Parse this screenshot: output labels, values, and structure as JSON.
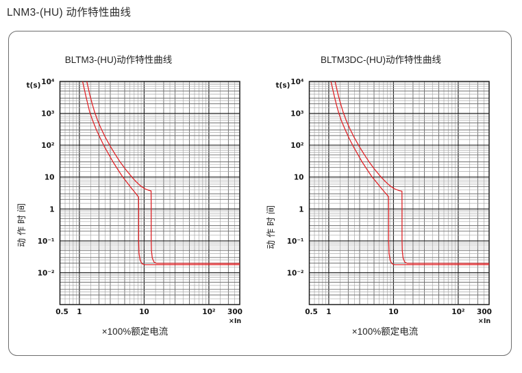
{
  "page": {
    "title": "LNM3-(HU) 动作特性曲线"
  },
  "colors": {
    "curve": "#e02428",
    "grid_major": "#1c1c1c",
    "grid_mid": "#6e6e6e",
    "grid_minor": "#a8a8a8",
    "plot_border": "#1c1c1c",
    "panel_border": "#6b6b6b",
    "text": "#222222"
  },
  "chart_data": [
    {
      "type": "line",
      "title": "BLTM3-(HU)动作特性曲线",
      "xlabel": "×100%额定电流",
      "ylabel": "动作时间",
      "y_axis_unit": "t(s)",
      "x_axis_unit": "×In",
      "xscale": "log",
      "yscale": "log",
      "xlim": [
        0.5,
        300
      ],
      "ylim": [
        0.001,
        10000
      ],
      "grid": "log-decades-with-minors",
      "legend": "none",
      "x_ticks": [
        {
          "value": 0.5,
          "label": "0.5"
        },
        {
          "value": 1,
          "label": "1"
        },
        {
          "value": 10,
          "label": "10"
        },
        {
          "value": 100,
          "label": "10²"
        },
        {
          "value": 300,
          "label": "300"
        }
      ],
      "y_ticks": [
        {
          "value": 10000,
          "label": "10⁴"
        },
        {
          "value": 1000,
          "label": "10³"
        },
        {
          "value": 100,
          "label": "10²"
        },
        {
          "value": 10,
          "label": "10"
        },
        {
          "value": 1,
          "label": "1"
        },
        {
          "value": 0.1,
          "label": "10⁻¹"
        },
        {
          "value": 0.01,
          "label": "10⁻²"
        }
      ],
      "series": [
        {
          "name": "min-trip-time",
          "points": [
            [
              1.12,
              10000
            ],
            [
              1.18,
              6200
            ],
            [
              1.26,
              3400
            ],
            [
              1.35,
              1900
            ],
            [
              1.45,
              1050
            ],
            [
              1.62,
              560
            ],
            [
              1.82,
              310
            ],
            [
              2.1,
              165
            ],
            [
              2.4,
              95
            ],
            [
              2.8,
              54
            ],
            [
              3.3,
              30
            ],
            [
              3.9,
              17.5
            ],
            [
              4.6,
              10.5
            ],
            [
              5.4,
              6.9
            ],
            [
              6.3,
              4.6
            ],
            [
              7.2,
              3.3
            ],
            [
              7.9,
              2.6
            ],
            [
              8.2,
              2.35
            ],
            [
              8.23,
              0.9
            ],
            [
              8.23,
              0.09
            ],
            [
              8.33,
              0.04
            ],
            [
              8.7,
              0.024
            ],
            [
              9.3,
              0.019
            ],
            [
              10.2,
              0.0178
            ],
            [
              300,
              0.0178
            ]
          ]
        },
        {
          "name": "max-trip-time",
          "points": [
            [
              1.3,
              10000
            ],
            [
              1.37,
              6200
            ],
            [
              1.46,
              3500
            ],
            [
              1.58,
              1950
            ],
            [
              1.72,
              1080
            ],
            [
              1.92,
              580
            ],
            [
              2.18,
              320
            ],
            [
              2.52,
              175
            ],
            [
              2.95,
              98
            ],
            [
              3.5,
              55
            ],
            [
              4.2,
              31
            ],
            [
              5.0,
              19
            ],
            [
              6.0,
              12
            ],
            [
              7.2,
              7.8
            ],
            [
              8.6,
              5.5
            ],
            [
              10.1,
              4.35
            ],
            [
              11.9,
              3.8
            ],
            [
              12.8,
              3.68
            ],
            [
              12.84,
              1.2
            ],
            [
              12.84,
              0.11
            ],
            [
              12.95,
              0.05
            ],
            [
              13.35,
              0.029
            ],
            [
              14.2,
              0.0215
            ],
            [
              15.5,
              0.0197
            ],
            [
              300,
              0.0195
            ]
          ]
        }
      ]
    },
    {
      "type": "line",
      "title": "BLTM3DC-(HU)动作特性曲线",
      "xlabel": "×100%额定电流",
      "ylabel": "动作时间",
      "y_axis_unit": "t(s)",
      "x_axis_unit": "×In",
      "xscale": "log",
      "yscale": "log",
      "xlim": [
        0.5,
        300
      ],
      "ylim": [
        0.001,
        10000
      ],
      "grid": "log-decades-with-minors",
      "legend": "none",
      "x_ticks": [
        {
          "value": 0.5,
          "label": "0.5"
        },
        {
          "value": 1,
          "label": "1"
        },
        {
          "value": 10,
          "label": "10"
        },
        {
          "value": 100,
          "label": "10²"
        },
        {
          "value": 300,
          "label": "300"
        }
      ],
      "y_ticks": [
        {
          "value": 10000,
          "label": "10⁴"
        },
        {
          "value": 1000,
          "label": "10³"
        },
        {
          "value": 100,
          "label": "10²"
        },
        {
          "value": 10,
          "label": "10"
        },
        {
          "value": 1,
          "label": "1"
        },
        {
          "value": 0.1,
          "label": "10⁻¹"
        },
        {
          "value": 0.01,
          "label": "10⁻²"
        }
      ],
      "series": [
        {
          "name": "min-trip-time",
          "points": [
            [
              1.08,
              10000
            ],
            [
              1.14,
              6200
            ],
            [
              1.22,
              3400
            ],
            [
              1.31,
              1900
            ],
            [
              1.42,
              1050
            ],
            [
              1.58,
              560
            ],
            [
              1.79,
              310
            ],
            [
              2.06,
              165
            ],
            [
              2.37,
              95
            ],
            [
              2.77,
              54
            ],
            [
              3.27,
              30
            ],
            [
              3.88,
              17.5
            ],
            [
              4.6,
              10.5
            ],
            [
              5.45,
              6.9
            ],
            [
              6.4,
              4.6
            ],
            [
              7.35,
              3.3
            ],
            [
              8.1,
              2.65
            ],
            [
              8.4,
              2.4
            ],
            [
              8.43,
              0.9
            ],
            [
              8.43,
              0.09
            ],
            [
              8.53,
              0.04
            ],
            [
              8.9,
              0.024
            ],
            [
              9.5,
              0.019
            ],
            [
              10.4,
              0.0178
            ],
            [
              300,
              0.0178
            ]
          ]
        },
        {
          "name": "max-trip-time",
          "points": [
            [
              1.25,
              10000
            ],
            [
              1.32,
              6200
            ],
            [
              1.41,
              3500
            ],
            [
              1.53,
              1950
            ],
            [
              1.67,
              1080
            ],
            [
              1.87,
              580
            ],
            [
              2.13,
              320
            ],
            [
              2.47,
              175
            ],
            [
              2.9,
              98
            ],
            [
              3.45,
              55
            ],
            [
              4.15,
              31
            ],
            [
              4.95,
              19
            ],
            [
              5.95,
              12
            ],
            [
              7.2,
              7.8
            ],
            [
              8.65,
              5.5
            ],
            [
              10.2,
              4.35
            ],
            [
              12.2,
              3.75
            ],
            [
              13.5,
              3.6
            ],
            [
              13.54,
              1.2
            ],
            [
              13.54,
              0.11
            ],
            [
              13.65,
              0.05
            ],
            [
              14.05,
              0.029
            ],
            [
              14.9,
              0.0215
            ],
            [
              16.2,
              0.0197
            ],
            [
              300,
              0.0195
            ]
          ]
        }
      ]
    }
  ]
}
